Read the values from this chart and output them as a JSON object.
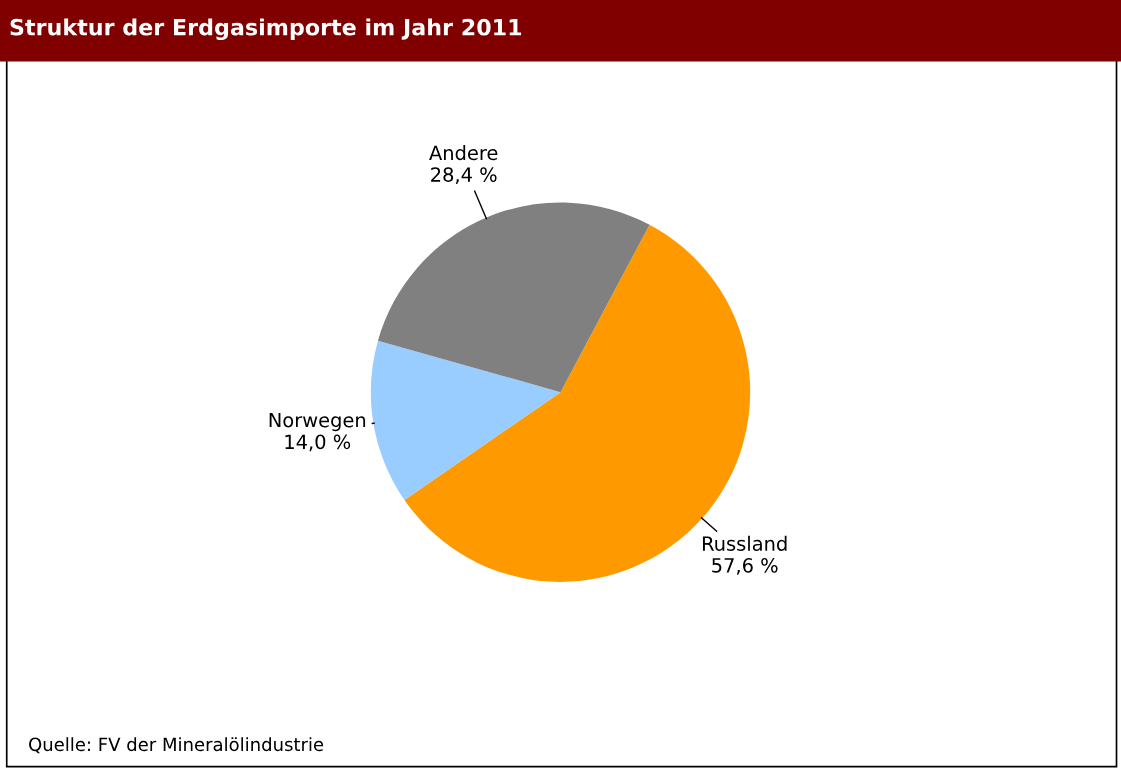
{
  "chart_data": {
    "type": "pie",
    "title": "Struktur der Erdgasimporte im Jahr 2011",
    "categories": [
      "Russland",
      "Norwegen",
      "Andere"
    ],
    "values": [
      57.6,
      14.0,
      28.4
    ],
    "value_labels": [
      "57,6 %",
      "14,0 %",
      "28,4 %"
    ],
    "colors": [
      "#ff9900",
      "#99ccff",
      "#808080"
    ],
    "annotations": [
      "Quelle: FV der Mineralölindustrie"
    ]
  }
}
